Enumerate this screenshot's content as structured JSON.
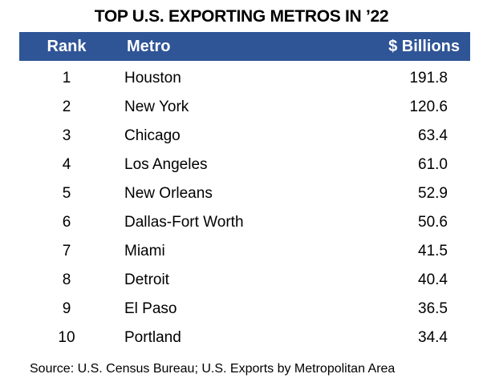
{
  "chart_data": {
    "type": "table",
    "title": "TOP U.S. EXPORTING METROS IN ’22",
    "columns": [
      "Rank",
      "Metro",
      "$ Billions"
    ],
    "rows": [
      {
        "rank": "1",
        "metro": "Houston",
        "value": "191.8"
      },
      {
        "rank": "2",
        "metro": "New York",
        "value": "120.6"
      },
      {
        "rank": "3",
        "metro": "Chicago",
        "value": "63.4"
      },
      {
        "rank": "4",
        "metro": "Los Angeles",
        "value": "61.0"
      },
      {
        "rank": "5",
        "metro": "New Orleans",
        "value": "52.9"
      },
      {
        "rank": "6",
        "metro": "Dallas-Fort Worth",
        "value": "50.6"
      },
      {
        "rank": "7",
        "metro": "Miami",
        "value": "41.5"
      },
      {
        "rank": "8",
        "metro": "Detroit",
        "value": "40.4"
      },
      {
        "rank": "9",
        "metro": "El Paso",
        "value": "36.5"
      },
      {
        "rank": "10",
        "metro": "Portland",
        "value": "34.4"
      }
    ],
    "source": "Source: U.S. Census Bureau; U.S. Exports by Metropolitan Area",
    "header_color": "#2F5597"
  }
}
